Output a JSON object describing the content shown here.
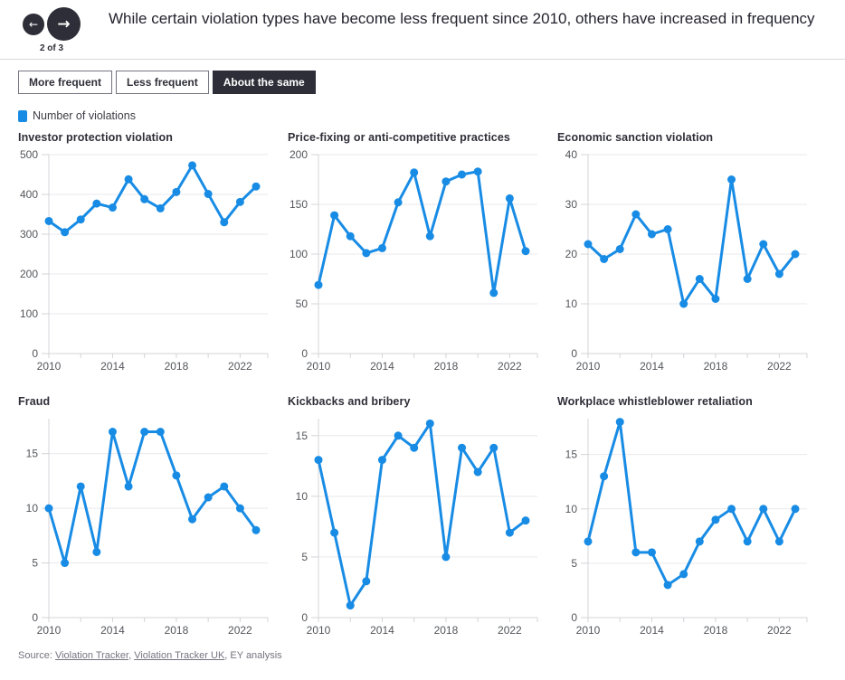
{
  "header": {
    "title": "While certain violation types have become less frequent since 2010, others have increased in frequency",
    "pagination": "2 of 3"
  },
  "icons": {
    "prev_arrow": "←",
    "next_arrow": "→"
  },
  "tabs": [
    {
      "label": "More frequent",
      "active": false
    },
    {
      "label": "Less frequent",
      "active": false
    },
    {
      "label": "About the same",
      "active": true
    }
  ],
  "legend": {
    "label": "Number of violations"
  },
  "colors": {
    "accent": "#188CE5",
    "dark": "#2e2e38",
    "grid": "#e9e9ed",
    "axis": "#d4d4d8",
    "tick_text": "#54565b",
    "muted": "#747480"
  },
  "chart_data": [
    {
      "type": "line",
      "title": "Investor protection violation",
      "x": [
        2010,
        2011,
        2012,
        2013,
        2014,
        2015,
        2016,
        2017,
        2018,
        2019,
        2020,
        2021,
        2022,
        2023
      ],
      "values": [
        333,
        305,
        337,
        377,
        367,
        438,
        388,
        365,
        406,
        473,
        401,
        330,
        381,
        420
      ],
      "ylim": [
        0,
        500
      ],
      "yticks": [
        0,
        100,
        200,
        300,
        400,
        500
      ],
      "xtick_labels": [
        2010,
        2014,
        2018,
        2022
      ],
      "xlabel": "",
      "ylabel": "",
      "grid": true,
      "series_name": "Number of violations"
    },
    {
      "type": "line",
      "title": "Price-fixing or anti-competitive practices",
      "x": [
        2010,
        2011,
        2012,
        2013,
        2014,
        2015,
        2016,
        2017,
        2018,
        2019,
        2020,
        2021,
        2022,
        2023
      ],
      "values": [
        69,
        139,
        118,
        101,
        106,
        152,
        182,
        118,
        173,
        180,
        183,
        61,
        156,
        103
      ],
      "ylim": [
        0,
        200
      ],
      "yticks": [
        0,
        50,
        100,
        150,
        200
      ],
      "xtick_labels": [
        2010,
        2014,
        2018,
        2022
      ],
      "xlabel": "",
      "ylabel": "",
      "grid": true,
      "series_name": "Number of violations"
    },
    {
      "type": "line",
      "title": "Economic sanction violation",
      "x": [
        2010,
        2011,
        2012,
        2013,
        2014,
        2015,
        2016,
        2017,
        2018,
        2019,
        2020,
        2021,
        2022,
        2023
      ],
      "values": [
        22,
        19,
        21,
        28,
        24,
        25,
        10,
        15,
        11,
        35,
        15,
        22,
        16,
        20
      ],
      "ylim": [
        0,
        40
      ],
      "yticks": [
        0,
        10,
        20,
        30,
        40
      ],
      "xtick_labels": [
        2010,
        2014,
        2018,
        2022
      ],
      "xlabel": "",
      "ylabel": "",
      "grid": true,
      "series_name": "Number of violations"
    },
    {
      "type": "line",
      "title": "Fraud",
      "x": [
        2010,
        2011,
        2012,
        2013,
        2014,
        2015,
        2016,
        2017,
        2018,
        2019,
        2020,
        2021,
        2022,
        2023
      ],
      "values": [
        10,
        5,
        12,
        6,
        17,
        12,
        17,
        17,
        13,
        9,
        11,
        12,
        10,
        8
      ],
      "ylim": [
        0,
        18.2
      ],
      "yticks": [
        0,
        5,
        10,
        15
      ],
      "xtick_labels": [
        2010,
        2014,
        2018,
        2022
      ],
      "xlabel": "",
      "ylabel": "",
      "grid": true,
      "series_name": "Number of violations"
    },
    {
      "type": "line",
      "title": "Kickbacks and bribery",
      "x": [
        2010,
        2011,
        2012,
        2013,
        2014,
        2015,
        2016,
        2017,
        2018,
        2019,
        2020,
        2021,
        2022,
        2023
      ],
      "values": [
        13,
        7,
        1,
        3,
        13,
        15,
        14,
        16,
        5,
        14,
        12,
        14,
        7,
        8
      ],
      "ylim": [
        0,
        16.4
      ],
      "yticks": [
        0,
        5,
        10,
        15
      ],
      "xtick_labels": [
        2010,
        2014,
        2018,
        2022
      ],
      "xlabel": "",
      "ylabel": "",
      "grid": true,
      "series_name": "Number of violations"
    },
    {
      "type": "line",
      "title": "Workplace whistleblower retaliation",
      "x": [
        2010,
        2011,
        2012,
        2013,
        2014,
        2015,
        2016,
        2017,
        2018,
        2019,
        2020,
        2021,
        2022,
        2023
      ],
      "values": [
        7,
        13,
        18,
        6,
        6,
        3,
        4,
        7,
        9,
        10,
        7,
        10,
        7,
        10
      ],
      "ylim": [
        0,
        18.3
      ],
      "yticks": [
        0,
        5,
        10,
        15
      ],
      "xtick_labels": [
        2010,
        2014,
        2018,
        2022
      ],
      "xlabel": "",
      "ylabel": "",
      "grid": true,
      "series_name": "Number of violations"
    }
  ],
  "footer": {
    "prefix": "Source: ",
    "link_violation_tracker": "Violation Tracker",
    "sep1": ", ",
    "link_violation_tracker_uk": "Violation Tracker UK",
    "suffix": ", EY analysis"
  }
}
